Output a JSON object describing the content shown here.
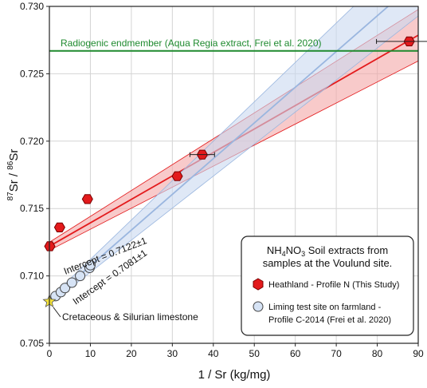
{
  "chart_data": {
    "type": "scatter",
    "xlabel": "1 / Sr  (kg/mg)",
    "ylabel_parts": {
      "pre_sup": "87",
      "mid": "Sr / ",
      "post_sup": "86",
      "end": "Sr"
    },
    "xlim": [
      0,
      90
    ],
    "ylim": [
      0.705,
      0.73
    ],
    "xticks": [
      "0",
      "10",
      "20",
      "30",
      "40",
      "50",
      "60",
      "70",
      "80",
      "90"
    ],
    "yticks": [
      "0.705",
      "0.710",
      "0.715",
      "0.720",
      "0.725",
      "0.730"
    ],
    "grid": true,
    "series": [
      {
        "name": "Heathland - Profile N (This Study)",
        "marker": "hexagon",
        "color": "#e31a1c",
        "points": [
          {
            "x": 0.1,
            "y": 0.7122
          },
          {
            "x": 2.5,
            "y": 0.7136
          },
          {
            "x": 9.3,
            "y": 0.7157
          },
          {
            "x": 31.2,
            "y": 0.7174
          },
          {
            "x": 37.3,
            "y": 0.719
          },
          {
            "x": 87.8,
            "y": 0.7274
          }
        ]
      },
      {
        "name": "Liming test site on farmland - Profile C-2014 (Frei et al. 2020)",
        "marker": "circle",
        "color": "#d6e3f5",
        "points": [
          {
            "x": 1.5,
            "y": 0.7085
          },
          {
            "x": 2.8,
            "y": 0.7088
          },
          {
            "x": 3.8,
            "y": 0.7091
          },
          {
            "x": 5.5,
            "y": 0.7095
          },
          {
            "x": 7.5,
            "y": 0.71
          },
          {
            "x": 9.8,
            "y": 0.7106
          },
          {
            "x": 10.0,
            "y": 0.7108
          }
        ]
      }
    ],
    "regressions": [
      {
        "color": "#e31a1c",
        "intercept": 0.7122,
        "slope": 0.000174,
        "band_color": "#f4a6a6"
      },
      {
        "color": "#9ab6df",
        "intercept": 0.7081,
        "slope": 0.000265,
        "band_color": "#c9d9f0"
      }
    ],
    "reference_line": {
      "y": 0.7267,
      "color": "#1e8a2e",
      "label": "Radiogenic endmember (Aqua Regia extract, Frei et al. 2020)"
    },
    "annotations": {
      "intercept_red": "Intercept = 0.7122±1",
      "intercept_blue": "Intercept = 0.7081±1",
      "limestone": "Cretaceous & Silurian limestone"
    },
    "limestone_point": {
      "x": 0,
      "y": 0.7081,
      "color": "#f5e43a"
    },
    "legend": {
      "title_line1_pre": "NH",
      "title_line1_sub1": "4",
      "title_line1_mid": "NO",
      "title_line1_sub2": "3",
      "title_line1_post": " Soil extracts from",
      "title_line2": "samples at the Voulund site.",
      "entry1": "Heathland - Profile N (This Study)",
      "entry2_line1": "Liming test site on farmland -",
      "entry2_line2": "Profile C-2014 (Frei et al. 2020)",
      "placement": "bottom-right"
    }
  }
}
